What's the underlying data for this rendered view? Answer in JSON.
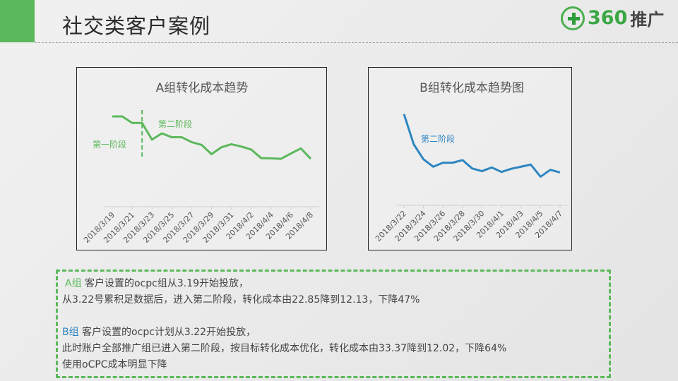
{
  "header": {
    "title": "社交类客户案例",
    "logo_num": "360",
    "logo_text": "推广",
    "accent": "#5cb85c"
  },
  "chart_data": [
    {
      "type": "line",
      "title": "A组转化成本趋势",
      "color": "#5cb85c",
      "x": [
        "2018/3/19",
        "2018/3/20",
        "2018/3/21",
        "2018/3/22",
        "2018/3/23",
        "2018/3/24",
        "2018/3/25",
        "2018/3/26",
        "2018/3/27",
        "2018/3/28",
        "2018/3/29",
        "2018/3/30",
        "2018/3/31",
        "2018/4/1",
        "2018/4/2",
        "2018/4/3",
        "2018/4/4",
        "2018/4/5",
        "2018/4/6",
        "2018/4/7",
        "2018/4/8"
      ],
      "values": [
        22.85,
        22.85,
        21.21,
        21.21,
        16.99,
        18.57,
        17.58,
        17.58,
        16.35,
        15.65,
        13.3,
        15.06,
        15.82,
        15.24,
        14.48,
        12.31,
        12.25,
        12.13,
        13.48,
        14.77,
        12.13
      ],
      "tick_labels": [
        "2018/3/19",
        "2018/3/21",
        "2018/3/23",
        "2018/3/25",
        "2018/3/27",
        "2018/3/29",
        "2018/3/31",
        "2018/4/2",
        "2018/4/4",
        "2018/4/6",
        "2018/4/8"
      ],
      "ylim": [
        0,
        30
      ],
      "grid": false,
      "annotations": [
        {
          "text": "第一阶段"
        },
        {
          "text": "第二阶段"
        }
      ],
      "divider_at": "2018/3/22"
    },
    {
      "type": "line",
      "title": "B组转化成本趋势图",
      "color": "#2e86c1",
      "x": [
        "2018/3/22",
        "2018/3/23",
        "2018/3/24",
        "2018/3/25",
        "2018/3/26",
        "2018/3/27",
        "2018/3/28",
        "2018/3/29",
        "2018/3/30",
        "2018/3/31",
        "2018/4/1",
        "2018/4/2",
        "2018/4/3",
        "2018/4/4",
        "2018/4/5",
        "2018/4/6",
        "2018/4/7"
      ],
      "values": [
        33.37,
        22.31,
        16.83,
        14.13,
        15.58,
        15.58,
        16.54,
        13.46,
        12.5,
        13.85,
        12.21,
        13.37,
        14.13,
        14.9,
        10.47,
        12.98,
        12.02
      ],
      "tick_labels": [
        "2018/3/22",
        "2018/3/24",
        "2018/3/26",
        "2018/3/28",
        "2018/3/30",
        "2018/4/1",
        "2018/4/3",
        "2018/4/5",
        "2018/4/7"
      ],
      "ylim": [
        0,
        40
      ],
      "grid": false,
      "annotations": [
        {
          "text": "第二阶段"
        }
      ]
    }
  ],
  "summary": {
    "a_label": "A组",
    "a_line1": " 客户设置的ocpc组从3.19开始投放，",
    "a_line2": "从3.22号累积足数据后，进入第二阶段，转化成本由22.85降到12.13，下降47%",
    "b_label": "B组",
    "b_line1": " 客户设置的ocpc计划从3.22开始投放，",
    "b_line2": "此时账户全部推广组已进入第二阶段，按目标转化成本优化，转化成本由33.37降到12.02，下降64%",
    "conclusion": "使用oCPC成本明显下降"
  }
}
